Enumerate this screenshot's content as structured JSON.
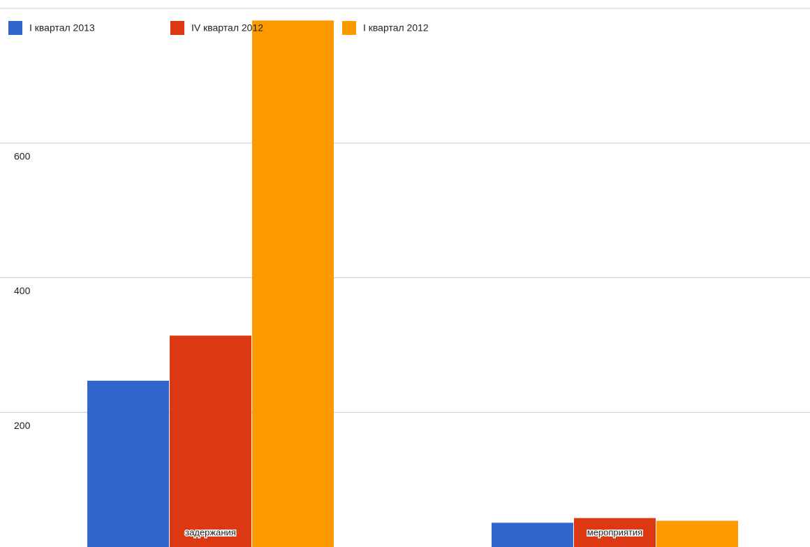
{
  "chart_data": {
    "type": "bar",
    "categories": [
      "задержания",
      "мероприятия"
    ],
    "series": [
      {
        "name": "I квартал 2013",
        "color": "#3366cc",
        "values": [
          247,
          36
        ]
      },
      {
        "name": "IV квартал 2012",
        "color": "#dc3912",
        "values": [
          314,
          43
        ]
      },
      {
        "name": "I квартал 2012",
        "color": "#ff9900",
        "values": [
          782,
          39
        ]
      }
    ],
    "ylim": [
      0,
      800
    ],
    "yticks": [
      200,
      400,
      600
    ],
    "grid": true,
    "legend": "top"
  }
}
